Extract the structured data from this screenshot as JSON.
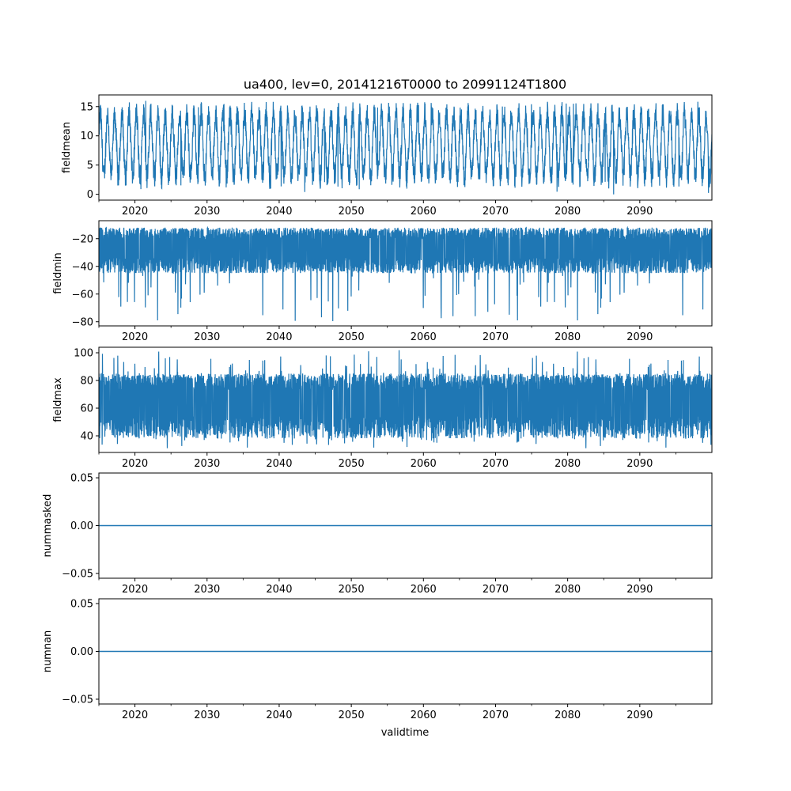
{
  "chart_data": {
    "type": "line",
    "title": "ua400, lev=0, 20141216T0000 to 20991124T1800",
    "xlabel": "validtime",
    "x_ticks": [
      "2020",
      "2030",
      "2040",
      "2050",
      "2060",
      "2070",
      "2080",
      "2090"
    ],
    "xlim": [
      2015,
      2100
    ],
    "series_color": "#1f77b4",
    "panels": [
      {
        "name": "fieldmean",
        "ylabel": "fieldmean",
        "ylim": [
          -1,
          17
        ],
        "yticks": [
          0,
          5,
          10,
          15
        ],
        "ytick_labels": [
          "0",
          "5",
          "10",
          "15"
        ],
        "kind": "seasonal",
        "data_range": [
          -0.3,
          16.0
        ],
        "annual_min_typical": 2.5,
        "annual_max_typical": 14.5
      },
      {
        "name": "fieldmin",
        "ylabel": "fieldmin",
        "ylim": [
          -83,
          -7
        ],
        "yticks": [
          -80,
          -60,
          -40,
          -20
        ],
        "ytick_labels": [
          "−80",
          "−60",
          "−40",
          "−20"
        ],
        "kind": "noisy",
        "data_range": [
          -80,
          -9
        ],
        "band": [
          -45,
          -12
        ]
      },
      {
        "name": "fieldmax",
        "ylabel": "fieldmax",
        "ylim": [
          28,
          104
        ],
        "yticks": [
          40,
          60,
          80,
          100
        ],
        "ytick_labels": [
          "40",
          "60",
          "80",
          "100"
        ],
        "kind": "noisy",
        "data_range": [
          31,
          102
        ],
        "band": [
          38,
          85
        ]
      },
      {
        "name": "nummasked",
        "ylabel": "nummasked",
        "ylim": [
          -0.055,
          0.055
        ],
        "yticks": [
          -0.05,
          0.0,
          0.05
        ],
        "ytick_labels": [
          "−0.05",
          "0.00",
          "0.05"
        ],
        "kind": "constant",
        "value": 0.0
      },
      {
        "name": "numnan",
        "ylabel": "numnan",
        "ylim": [
          -0.055,
          0.055
        ],
        "yticks": [
          -0.05,
          0.0,
          0.05
        ],
        "ytick_labels": [
          "−0.05",
          "0.00",
          "0.05"
        ],
        "kind": "constant",
        "value": 0.0
      }
    ]
  }
}
